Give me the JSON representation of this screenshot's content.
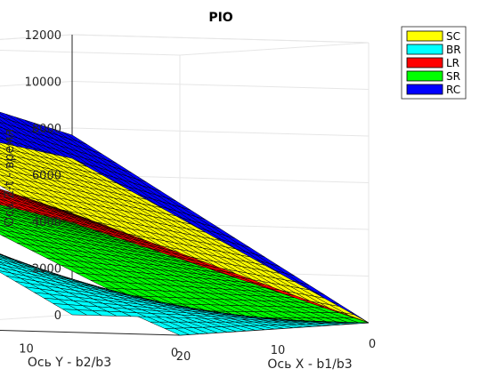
{
  "chart_data": {
    "type": "surface3d",
    "title": "PIO",
    "xlabel": "Ось X - b1/b3",
    "ylabel": "Ось Y - b2/b3",
    "zlabel": "Ось Z-t - время",
    "xlim": [
      0,
      20
    ],
    "ylim": [
      0,
      20
    ],
    "zlim": [
      0,
      12000
    ],
    "xticks": [
      "0",
      "10",
      "20"
    ],
    "yticks": [
      "0",
      "10",
      "20"
    ],
    "zticks": [
      "0",
      "2000",
      "4000",
      "6000",
      "8000",
      "10000",
      "12000"
    ],
    "grid": true,
    "legend_position": "top-right, outside",
    "series": [
      {
        "name": "SC",
        "color": "#ffff00",
        "corners": {
          "x0y0": 0,
          "x20y0": 1900,
          "x0y20": 6700,
          "x20y20": 9000
        }
      },
      {
        "name": "BR",
        "color": "#00ffff",
        "corners": {
          "x0y0": 0,
          "x20y0": 0,
          "x0y20": 0,
          "x20y20": 5300
        }
      },
      {
        "name": "LR",
        "color": "#ff0000",
        "corners": {
          "x0y0": 0,
          "x20y0": 750,
          "x0y20": 4350,
          "x20y20": 7600
        }
      },
      {
        "name": "SR",
        "color": "#00ff00",
        "corners": {
          "x0y0": 0,
          "x20y0": 420,
          "x0y20": 3950,
          "x20y20": 6500
        }
      },
      {
        "name": "RC",
        "color": "#0000ff",
        "corners": {
          "x0y0": 0,
          "x20y0": 2600,
          "x0y20": 7700,
          "x20y20": 10800
        }
      }
    ]
  }
}
